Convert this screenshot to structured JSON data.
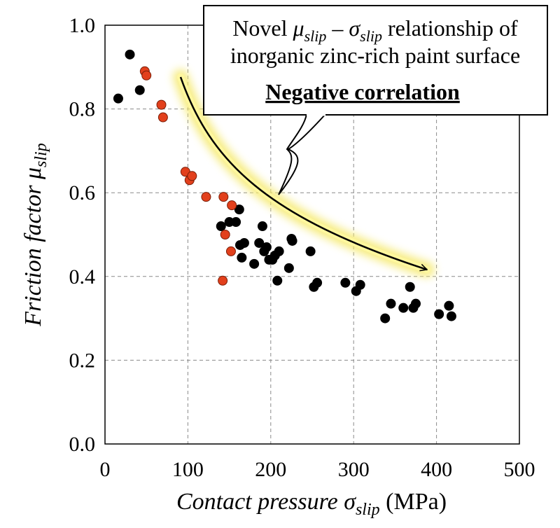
{
  "chart_data": {
    "type": "scatter",
    "xlabel": {
      "main": "Contact pressure σ",
      "sub": "slip",
      "unit": " (MPa)"
    },
    "ylabel": {
      "main": "Friction factor μ",
      "sub": "slip"
    },
    "xlim": [
      0,
      500
    ],
    "ylim": [
      0.0,
      1.0
    ],
    "xticks": [
      "0",
      "100",
      "200",
      "300",
      "400",
      "500"
    ],
    "yticks": [
      "0.0",
      "0.2",
      "0.4",
      "0.6",
      "0.8",
      "1.0"
    ],
    "grid": true,
    "series": [
      {
        "color": "#000000",
        "points": [
          [
            16,
            0.825
          ],
          [
            30,
            0.93
          ],
          [
            42,
            0.845
          ],
          [
            140,
            0.52
          ],
          [
            150,
            0.53
          ],
          [
            158,
            0.53
          ],
          [
            162,
            0.56
          ],
          [
            163,
            0.475
          ],
          [
            165,
            0.445
          ],
          [
            168,
            0.48
          ],
          [
            180,
            0.43
          ],
          [
            186,
            0.48
          ],
          [
            190,
            0.52
          ],
          [
            192,
            0.46
          ],
          [
            195,
            0.47
          ],
          [
            198,
            0.44
          ],
          [
            202,
            0.44
          ],
          [
            205,
            0.45
          ],
          [
            208,
            0.39
          ],
          [
            210,
            0.46
          ],
          [
            222,
            0.42
          ],
          [
            225,
            0.49
          ],
          [
            226,
            0.485
          ],
          [
            248,
            0.46
          ],
          [
            252,
            0.375
          ],
          [
            256,
            0.385
          ],
          [
            290,
            0.385
          ],
          [
            303,
            0.365
          ],
          [
            308,
            0.38
          ],
          [
            338,
            0.3
          ],
          [
            345,
            0.335
          ],
          [
            360,
            0.325
          ],
          [
            368,
            0.375
          ],
          [
            372,
            0.325
          ],
          [
            375,
            0.335
          ],
          [
            403,
            0.31
          ],
          [
            415,
            0.33
          ],
          [
            418,
            0.305
          ]
        ]
      },
      {
        "color": "#e2401c",
        "points": [
          [
            48,
            0.89
          ],
          [
            50,
            0.88
          ],
          [
            68,
            0.81
          ],
          [
            70,
            0.78
          ],
          [
            97,
            0.65
          ],
          [
            102,
            0.63
          ],
          [
            105,
            0.64
          ],
          [
            122,
            0.59
          ],
          [
            143,
            0.59
          ],
          [
            145,
            0.5
          ],
          [
            152,
            0.46
          ],
          [
            153,
            0.57
          ],
          [
            142,
            0.39
          ]
        ]
      }
    ],
    "annotation": {
      "line1_prefix": "Novel ",
      "mu": "μ",
      "slip1": "slip",
      "dash": " – ",
      "sigma": "σ",
      "slip2": "slip",
      "line1_suffix": " relationship of",
      "line2": "inorganic zinc-rich paint surface",
      "line3": "Negative correlation"
    }
  }
}
